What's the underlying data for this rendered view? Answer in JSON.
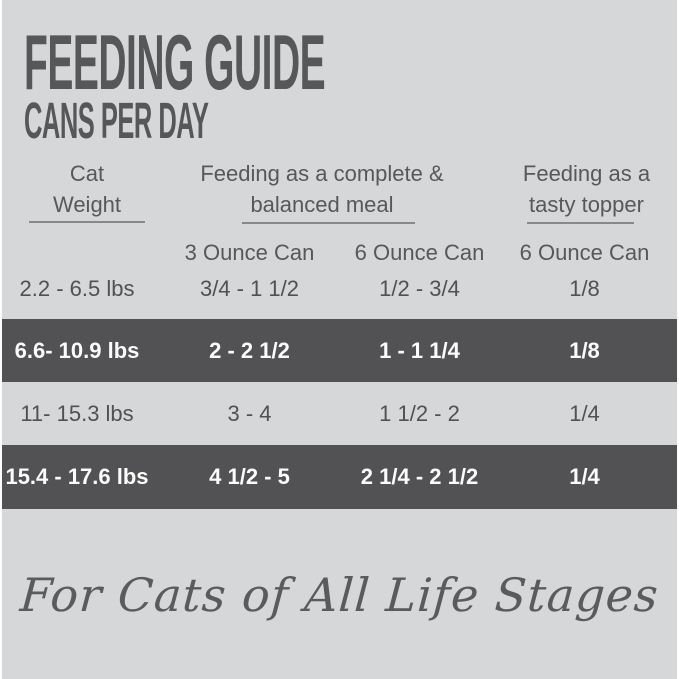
{
  "header": {
    "title": "FEEDING GUIDE",
    "subtitle": "CANS PER DAY"
  },
  "table": {
    "column_groups": [
      {
        "line1": "Cat",
        "line2": "Weight"
      },
      {
        "line1": "Feeding as a complete &",
        "line2": "balanced meal"
      },
      {
        "line1": "Feeding as a",
        "line2": "tasty topper"
      }
    ],
    "sub_headers": [
      "3 Ounce Can",
      "6 Ounce Can",
      "6 Ounce Can"
    ],
    "rows": [
      {
        "weight": "2.2 - 6.5 lbs",
        "complete_3oz": "3/4 - 1 1/2",
        "complete_6oz": "1/2 - 3/4",
        "topper_6oz": "1/8",
        "highlight": false
      },
      {
        "weight": "6.6- 10.9 lbs",
        "complete_3oz": "2 - 2 1/2",
        "complete_6oz": "1 - 1 1/4",
        "topper_6oz": "1/8",
        "highlight": true
      },
      {
        "weight": "11- 15.3 lbs",
        "complete_3oz": "3 - 4",
        "complete_6oz": "1 1/2 - 2",
        "topper_6oz": "1/4",
        "highlight": false
      },
      {
        "weight": "15.4 - 17.6 lbs",
        "complete_3oz": "4 1/2 - 5",
        "complete_6oz": "2 1/4 - 2 1/2",
        "topper_6oz": "1/4",
        "highlight": true
      }
    ]
  },
  "footer": {
    "tagline": "For Cats of All Life Stages"
  },
  "colors": {
    "background": "#d6d7d9",
    "frame": "#fdfdfd",
    "highlight_band": "#525254",
    "heading_text": "#565759",
    "body_text": "#505153",
    "light_text": "#fbfbfb",
    "underline": "#87888b"
  }
}
